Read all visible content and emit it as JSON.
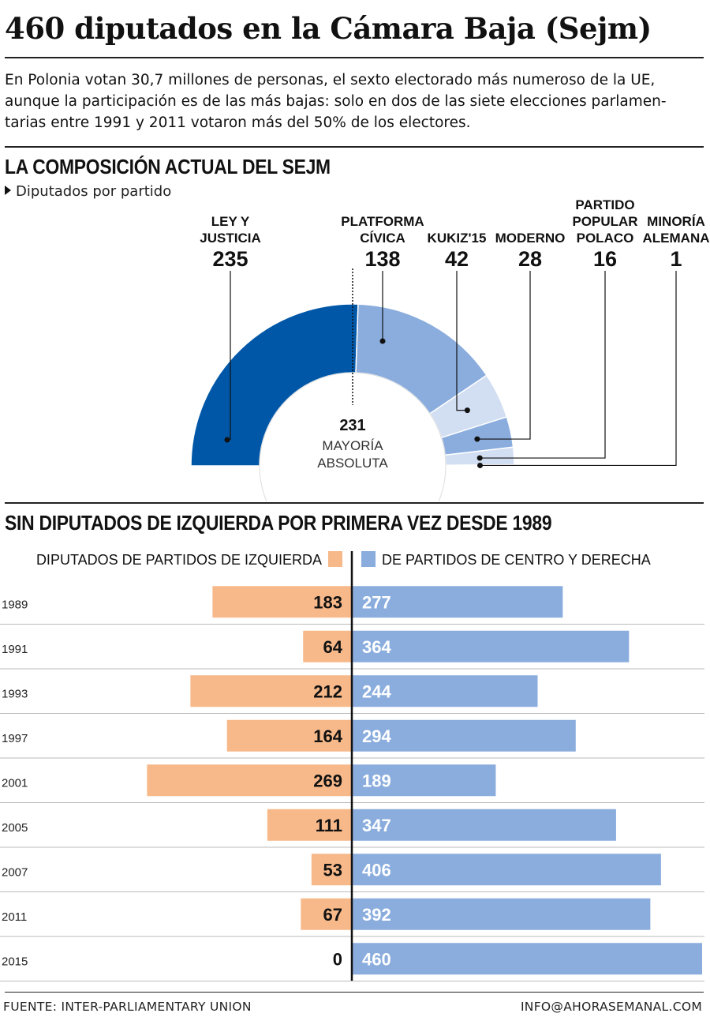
{
  "title": "460 diputados en la Cámara Baja (Sejm)",
  "intro_lines": [
    "En Polonia votan 30,7 millones de personas, el sexto electorado más numeroso de la UE,",
    "aunque la participación es de las más bajas: solo en dos de las siete elecciones parlamen-",
    "tarias entre 1991 y 2011 votaron más del 50% de los electores."
  ],
  "section1": {
    "title": "LA COMPOSICIÓN ACTUAL DEL SEJM",
    "subtitle": "Diputados por partido",
    "majority_value": "231",
    "majority_label_lines": [
      "MAYORÍA",
      "ABSOLUTA"
    ]
  },
  "section2": {
    "title": "SIN DIPUTADOS DE IZQUIERDA POR PRIMERA VEZ DESDE 1989",
    "legend_left": "DIPUTADOS DE PARTIDOS DE IZQUIERDA",
    "legend_right": "DE PARTIDOS DE CENTRO Y DERECHA"
  },
  "colors": {
    "ley_y_justicia": "#0057a8",
    "platforma": "#8aadde",
    "kukiz": "#d2def2",
    "moderno": "#8aadde",
    "psl": "#d2def2",
    "minority": "#8aadde",
    "left": "#f7b98a",
    "right": "#8aadde"
  },
  "chart_data": [
    {
      "type": "pie",
      "variant": "half-donut (parliament)",
      "title": "LA COMPOSICIÓN ACTUAL DEL SEJM",
      "subtitle": "Diputados por partido",
      "total": 460,
      "majority": 231,
      "slices": [
        {
          "label_lines": [
            "LEY Y",
            "JUSTICIA"
          ],
          "value": 235
        },
        {
          "label_lines": [
            "PLATFORMA",
            "CÍVICA"
          ],
          "value": 138
        },
        {
          "label_lines": [
            "KUKIZ'15"
          ],
          "value": 42
        },
        {
          "label_lines": [
            "MODERNO"
          ],
          "value": 28
        },
        {
          "label_lines": [
            "PARTIDO",
            "POPULAR",
            "POLACO"
          ],
          "value": 16
        },
        {
          "label_lines": [
            "MINORÍA",
            "ALEMANA"
          ],
          "value": 1
        }
      ]
    },
    {
      "type": "bar",
      "orientation": "horizontal diverging",
      "title": "SIN DIPUTADOS DE IZQUIERDA POR PRIMERA VEZ DESDE 1989",
      "categories": [
        "1989",
        "1991",
        "1993",
        "1997",
        "2001",
        "2005",
        "2007",
        "2011",
        "2015"
      ],
      "series": [
        {
          "name": "DIPUTADOS DE PARTIDOS DE IZQUIERDA",
          "values": [
            183,
            64,
            212,
            164,
            269,
            111,
            53,
            67,
            0
          ]
        },
        {
          "name": "DE PARTIDOS DE CENTRO Y DERECHA",
          "values": [
            277,
            364,
            244,
            294,
            189,
            347,
            406,
            392,
            460
          ]
        }
      ],
      "xlim": [
        0,
        460
      ]
    }
  ],
  "footer": {
    "source": "FUENTE: INTER-PARLIAMENTARY UNION",
    "email": "INFO@AHORASEMANAL.COM"
  }
}
